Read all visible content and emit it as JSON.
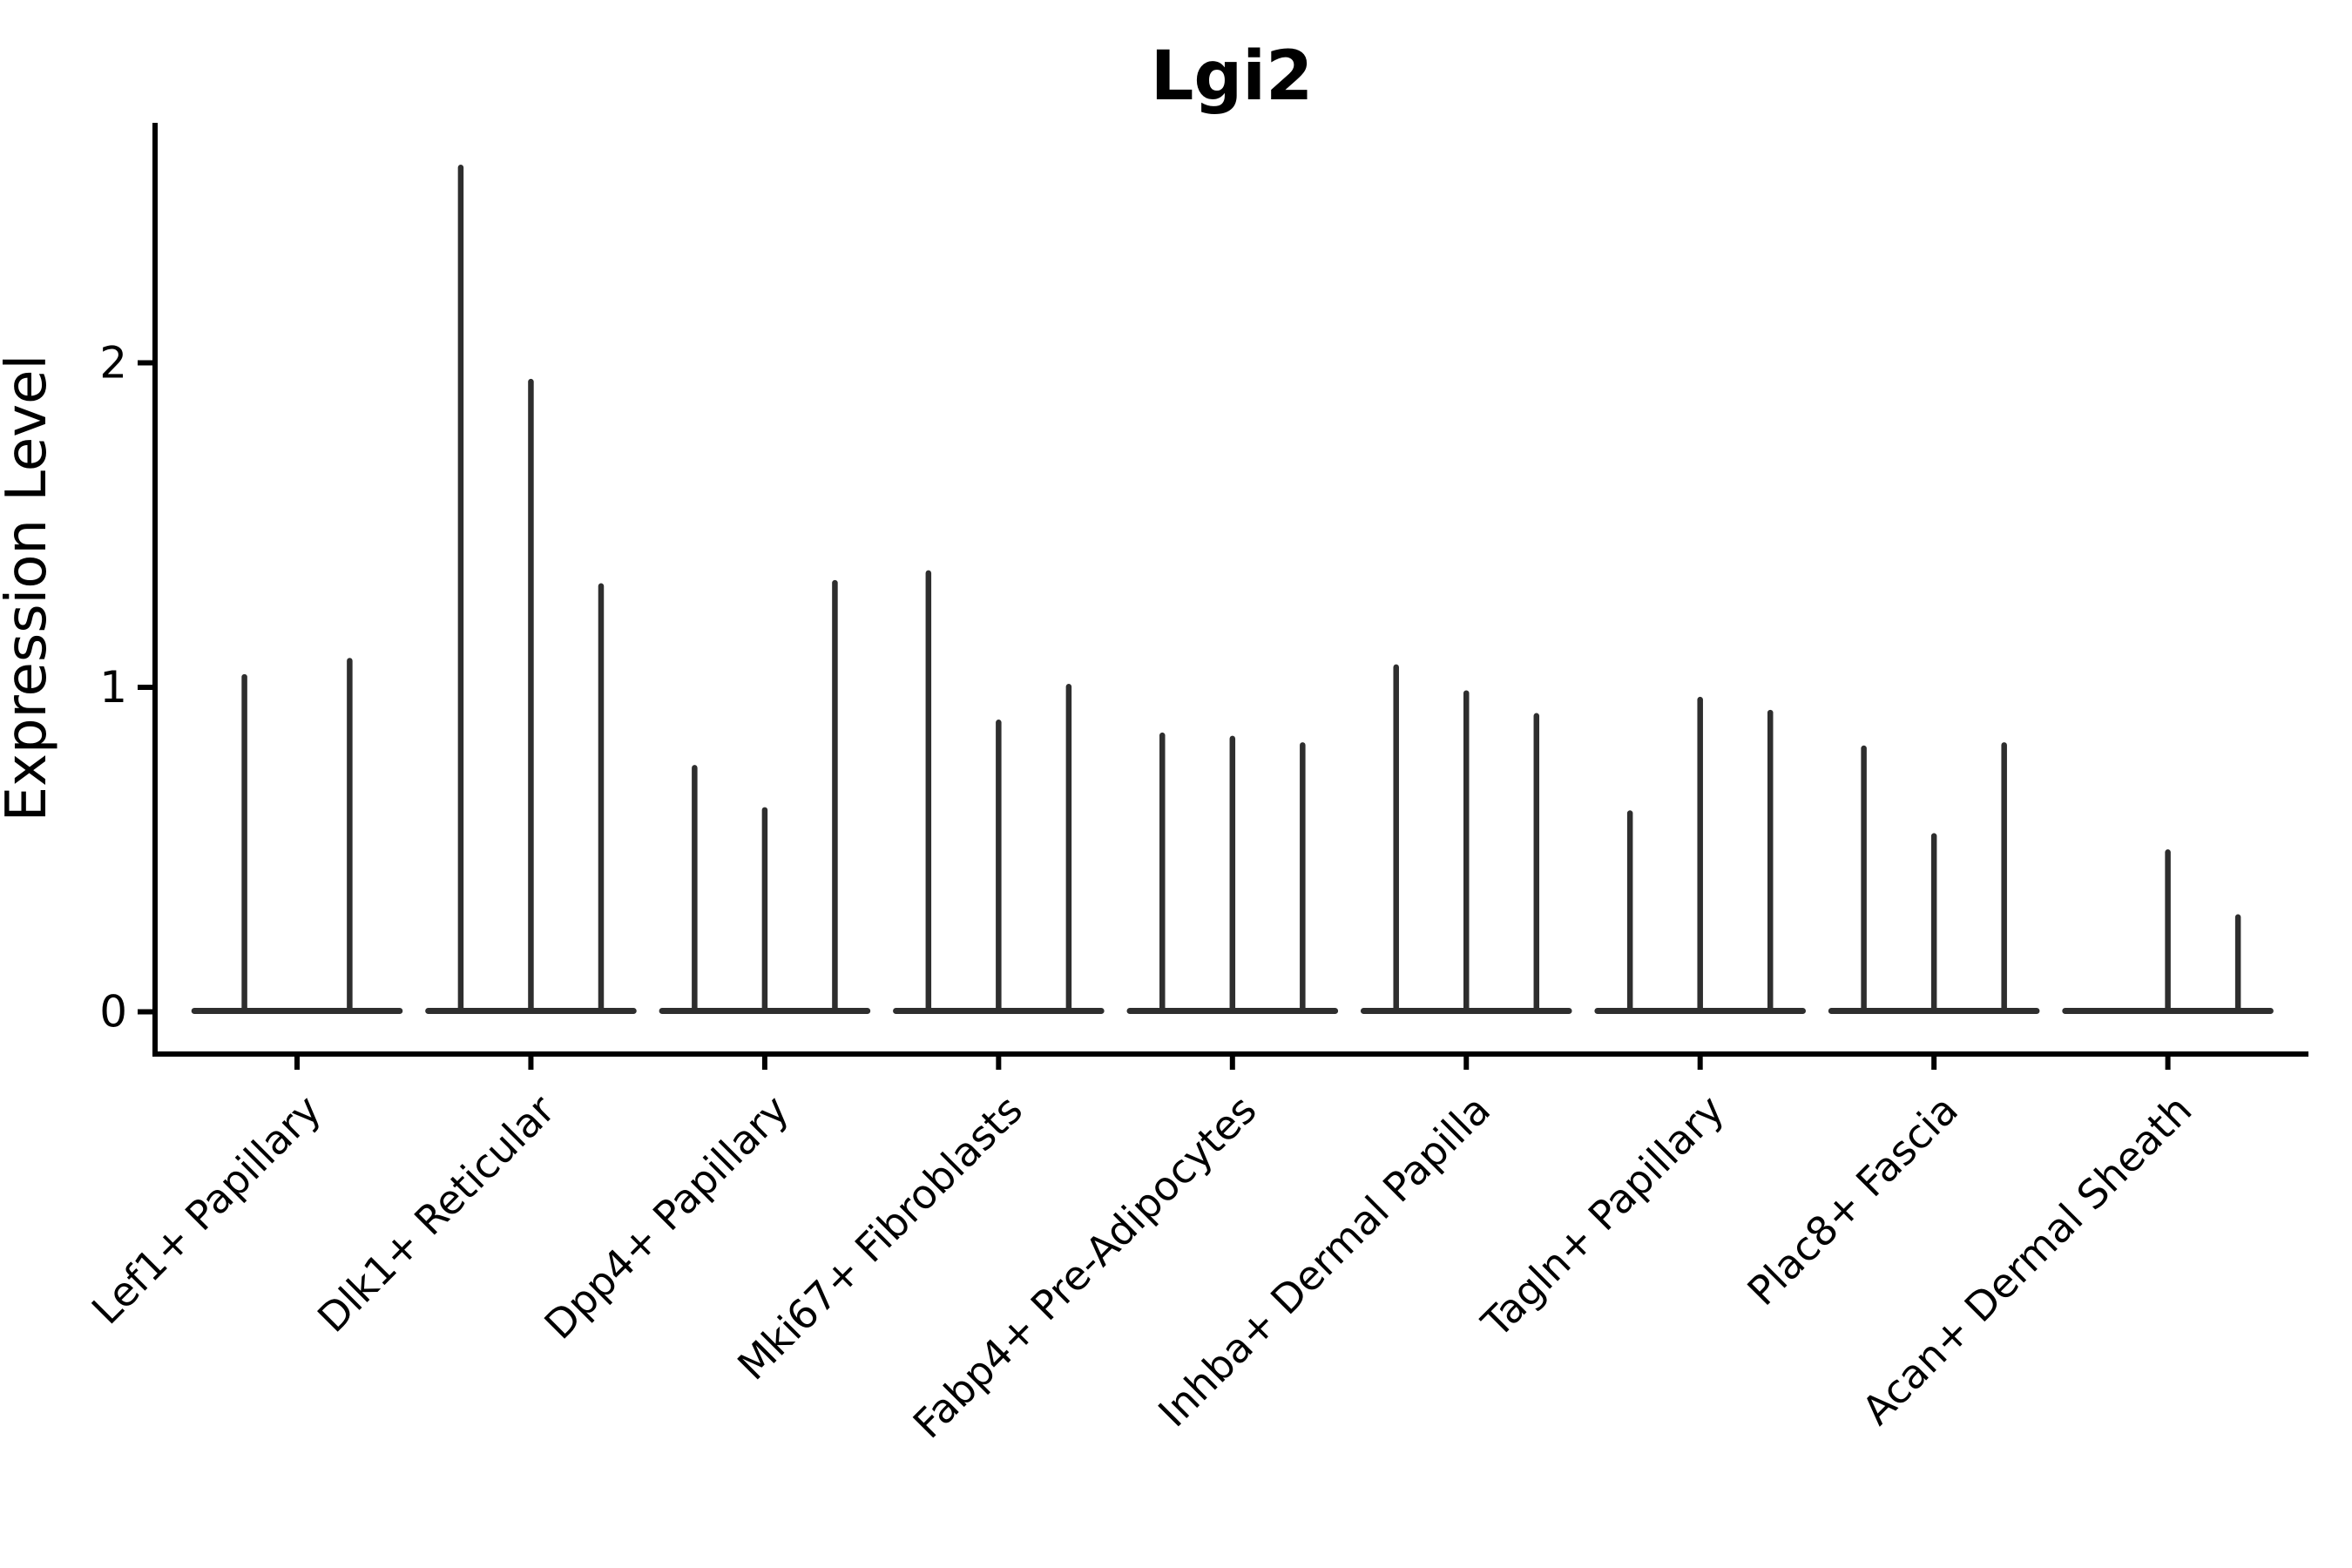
{
  "chart_data": {
    "type": "violin",
    "title": "Lgi2",
    "xlabel": "",
    "ylabel": "Expression Level",
    "ytick_labels": [
      "0",
      "1",
      "2"
    ],
    "ytick_values": [
      0,
      1,
      2
    ],
    "ylim": [
      -0.06,
      2.74
    ],
    "grid": false,
    "legend": "none",
    "orientation": "vertical",
    "style": "needle-thin violins: density collapsed flat at 0 expression with a thin vertical spike up to each violin's maximum value",
    "colors": {
      "violin_stroke": "#2e2e2e",
      "axis": "#000000",
      "text": "#000000",
      "background": "#ffffff"
    },
    "categories": [
      {
        "label": "Lef1+ Papillary",
        "violin_maxima": [
          1.04,
          1.09
        ]
      },
      {
        "label": "Dlk1+ Reticular",
        "violin_maxima": [
          2.61,
          1.95,
          1.32
        ]
      },
      {
        "label": "Dpp4+ Papillary",
        "violin_maxima": [
          0.76,
          0.63,
          1.33
        ]
      },
      {
        "label": "Mki67+ Fibroblasts",
        "violin_maxima": [
          1.36,
          0.9,
          1.01
        ]
      },
      {
        "label": "Fabp4+ Pre-Adipocytes",
        "violin_maxima": [
          0.86,
          0.85,
          0.83
        ]
      },
      {
        "label": "Inhba+ Dermal Papilla",
        "violin_maxima": [
          1.07,
          0.99,
          0.92
        ]
      },
      {
        "label": "Tagln+ Papillary",
        "violin_maxima": [
          0.62,
          0.97,
          0.93
        ]
      },
      {
        "label": "Plac8+ Fascia",
        "violin_maxima": [
          0.82,
          0.55,
          0.83
        ]
      },
      {
        "label": "Acan+ Dermal Sheath",
        "violin_maxima": [
          0.0,
          0.5,
          0.3
        ]
      }
    ]
  }
}
